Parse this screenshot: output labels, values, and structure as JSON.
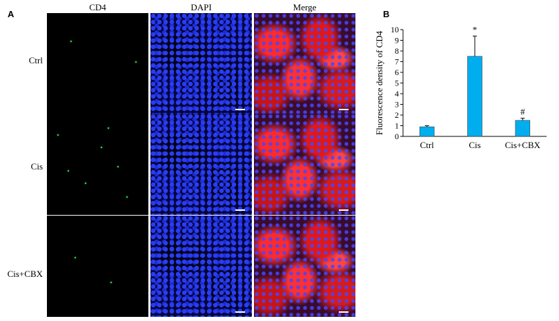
{
  "panel_a": {
    "letter": "A",
    "columns": [
      "CD4",
      "DAPI",
      "Merge"
    ],
    "rows": [
      "Ctrl",
      "Cis",
      "Cis+CBX"
    ]
  },
  "panel_b": {
    "letter": "B"
  },
  "colors": {
    "bar": "#00aeef",
    "cd4_signal": "#3cff5a",
    "dapi": "#2a3df0",
    "merge_red": "#ff2a2a"
  },
  "chart_data": {
    "type": "bar",
    "categories": [
      "Ctrl",
      "Cis",
      "Cis+CBX"
    ],
    "values": [
      0.9,
      7.5,
      1.5
    ],
    "errors": [
      0.1,
      1.9,
      0.2
    ],
    "annotations": [
      "",
      "*",
      "#"
    ],
    "title": "",
    "xlabel": "",
    "ylabel": "Fluorescence density of CD4",
    "ylim": [
      0,
      10
    ],
    "yticks": [
      0,
      1,
      2,
      3,
      4,
      5,
      6,
      7,
      8,
      9,
      10
    ],
    "grid": false,
    "legend": "none"
  }
}
